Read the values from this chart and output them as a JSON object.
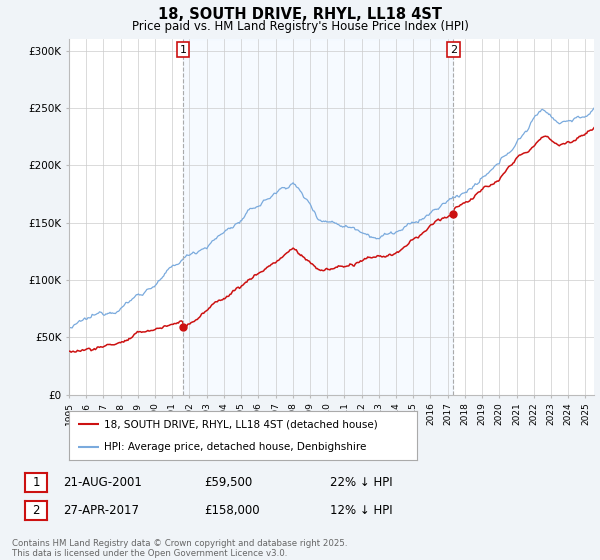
{
  "title": "18, SOUTH DRIVE, RHYL, LL18 4ST",
  "subtitle": "Price paid vs. HM Land Registry's House Price Index (HPI)",
  "ylim": [
    0,
    310000
  ],
  "yticks": [
    0,
    50000,
    100000,
    150000,
    200000,
    250000,
    300000
  ],
  "ytick_labels": [
    "£0",
    "£50K",
    "£100K",
    "£150K",
    "£200K",
    "£250K",
    "£300K"
  ],
  "bg_color": "#f0f4f8",
  "plot_bg_color": "#ffffff",
  "hpi_color": "#7aaadd",
  "price_color": "#cc1111",
  "dashed_color": "#aaaaaa",
  "shade_color": "#ddeeff",
  "sale1_date": "21-AUG-2001",
  "sale1_price": "£59,500",
  "sale1_hpi": "22% ↓ HPI",
  "sale2_date": "27-APR-2017",
  "sale2_price": "£158,000",
  "sale2_hpi": "12% ↓ HPI",
  "legend1": "18, SOUTH DRIVE, RHYL, LL18 4ST (detached house)",
  "legend2": "HPI: Average price, detached house, Denbighshire",
  "footnote": "Contains HM Land Registry data © Crown copyright and database right 2025.\nThis data is licensed under the Open Government Licence v3.0.",
  "sale1_year": 2001.622,
  "sale1_price_val": 59500,
  "sale2_year": 2017.329,
  "sale2_price_val": 158000,
  "xstart": 1995.0,
  "xend": 2025.5
}
